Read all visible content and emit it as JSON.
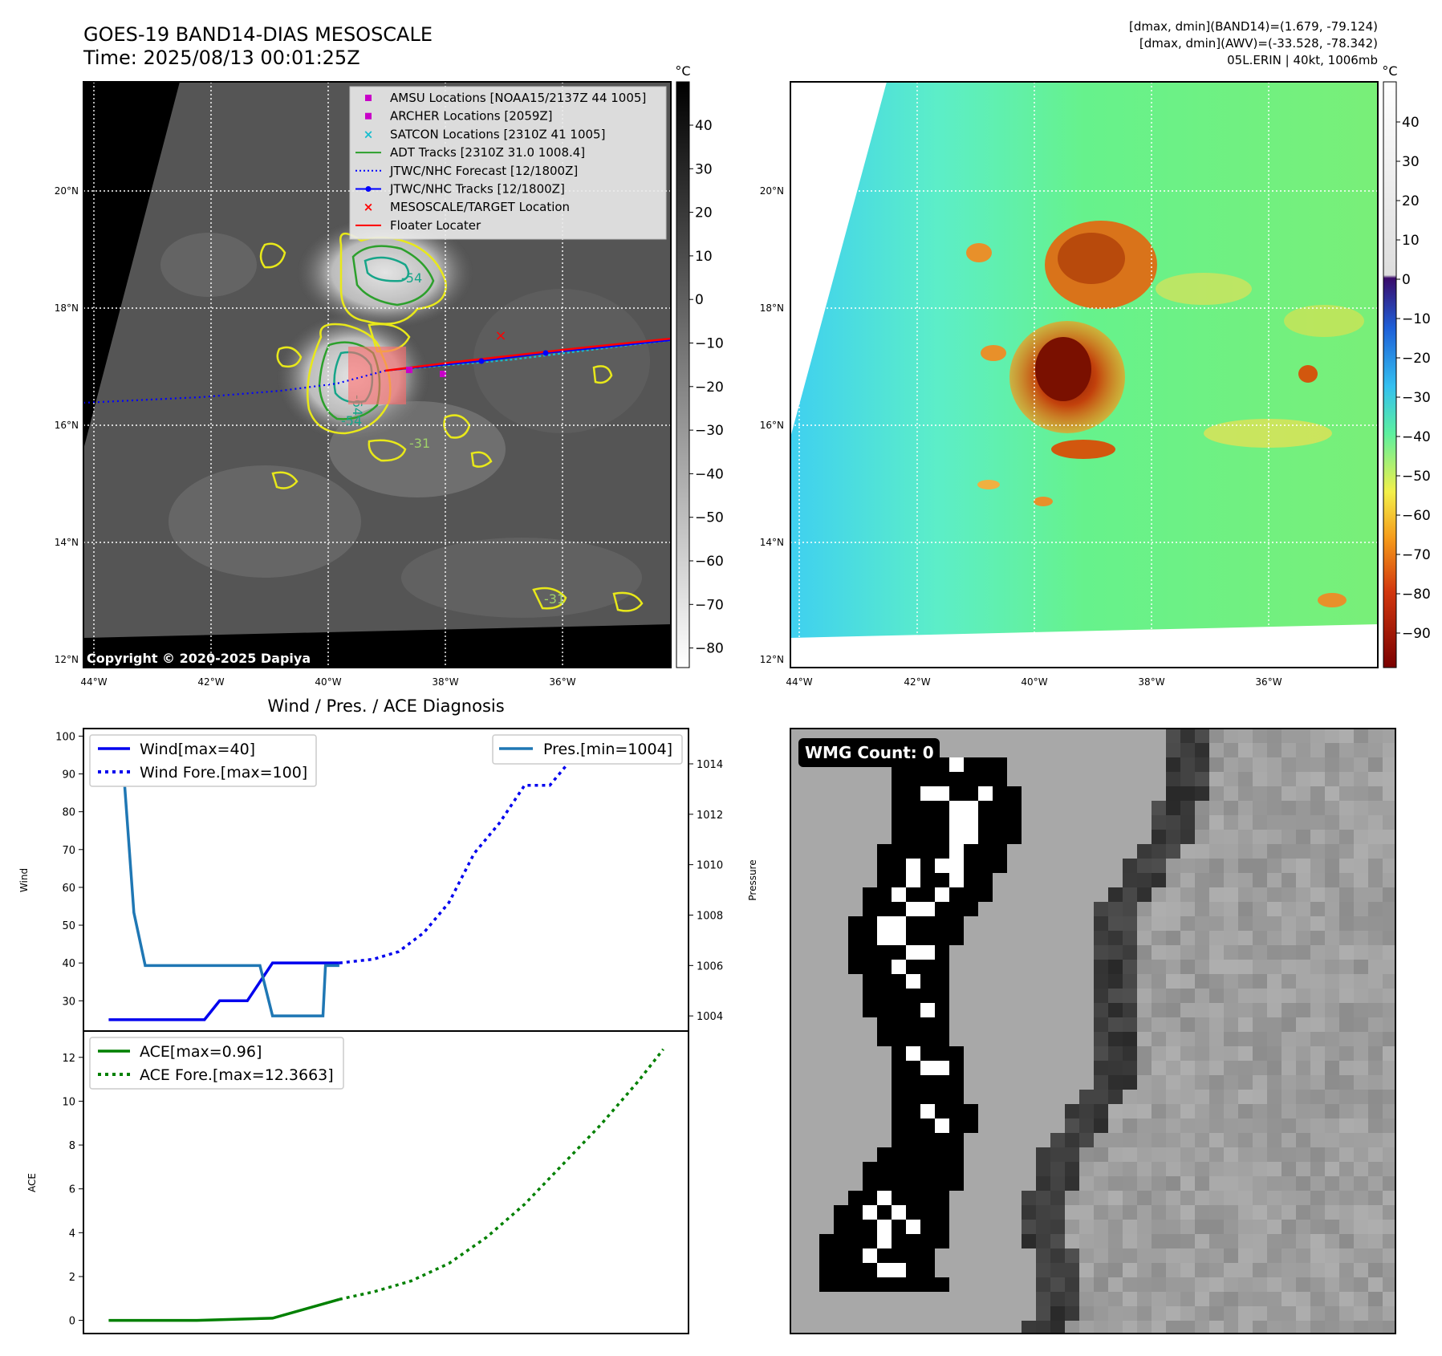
{
  "header": {
    "title_line1": "GOES-19 BAND14-DIAS MESOSCALE",
    "title_line2": "Time: 2025/08/13 00:01:25Z",
    "stats_line1": "[dmax, dmin](BAND14)=(1.679, -79.124)",
    "stats_line2": "[dmax, dmin](AWV)=(-33.528, -78.342)",
    "stats_line3": "05L.ERIN | 40kt, 1006mb"
  },
  "map": {
    "lat_labels": [
      "20°N",
      "18°N",
      "16°N",
      "14°N",
      "12°N"
    ],
    "lon_labels": [
      "44°W",
      "42°W",
      "40°W",
      "38°W",
      "36°W"
    ],
    "copyright": "Copyright © 2020-2025 Dapiya",
    "contour_labels": [
      "-54",
      "-64",
      "-54",
      "-31",
      "-31"
    ],
    "legend": [
      {
        "label": "AMSU Locations [NOAA15/2137Z 44 1005]",
        "color": "#c800c8",
        "marker": "square"
      },
      {
        "label": "ARCHER Locations [2059Z]",
        "color": "#c800c8",
        "marker": "square"
      },
      {
        "label": "SATCON Locations [2310Z 41 1005]",
        "color": "#17becf",
        "marker": "x"
      },
      {
        "label": "ADT Tracks [2310Z 31.0 1008.4]",
        "color": "#2ca02c",
        "marker": "line"
      },
      {
        "label": "JTWC/NHC Forecast [12/1800Z]",
        "color": "#0000ff",
        "marker": "dotted"
      },
      {
        "label": "JTWC/NHC Tracks [12/1800Z]",
        "color": "#0000ff",
        "marker": "line-dot"
      },
      {
        "label": "MESOSCALE/TARGET Location",
        "color": "#ff0000",
        "marker": "x"
      },
      {
        "label": "Floater Locater",
        "color": "#ff0000",
        "marker": "line"
      }
    ]
  },
  "colorbar_left": {
    "unit": "°C",
    "ticks": [
      "40",
      "30",
      "20",
      "10",
      "0",
      "−10",
      "−20",
      "−30",
      "−40",
      "−50",
      "−60",
      "−70",
      "−80"
    ]
  },
  "colorbar_right": {
    "unit": "°C",
    "ticks": [
      "40",
      "30",
      "20",
      "10",
      "0",
      "−10",
      "−20",
      "−30",
      "−40",
      "−50",
      "−60",
      "−70",
      "−80",
      "−90"
    ]
  },
  "wmg": {
    "label": "WMG Count: 0"
  },
  "chart_data": [
    {
      "type": "line",
      "title": "Wind / Pres. / ACE Diagnosis",
      "ylabel": "Wind",
      "ylabel_right": "Pressure",
      "ylim": [
        22,
        102
      ],
      "ylim_right": [
        1003.4,
        1015.4
      ],
      "y_ticks": [
        100,
        90,
        80,
        70,
        60,
        50,
        40,
        30
      ],
      "y_ticks_right": [
        1014,
        1012,
        1010,
        1008,
        1006,
        1004
      ],
      "x": [
        0,
        1,
        2,
        3,
        4,
        5,
        6,
        7,
        8,
        9,
        10,
        11,
        12,
        13,
        14,
        15,
        16,
        17,
        18,
        19,
        20,
        21,
        22,
        23,
        24,
        25,
        26,
        27,
        28,
        29,
        30,
        31,
        32,
        33,
        34,
        35,
        36,
        37,
        38,
        39,
        40,
        41,
        42,
        43,
        44
      ],
      "series": [
        {
          "name": "Wind[max=40]",
          "axis": "left",
          "style": "solid",
          "color": "#0000ee",
          "x": [
            0,
            7.6,
            8.8,
            11,
            13,
            13.6,
            18.3
          ],
          "values": [
            25,
            25,
            30,
            30,
            40,
            40,
            40
          ]
        },
        {
          "name": "Wind Fore.[max=100]",
          "axis": "left",
          "style": "dotted",
          "color": "#0000ee",
          "x": [
            18.3,
            21,
            23,
            25,
            27,
            29,
            31,
            33,
            35,
            37,
            39
          ],
          "values": [
            40,
            41,
            43,
            48,
            56,
            69,
            77,
            87,
            87,
            95,
            100
          ]
        },
        {
          "name": "Pres.[min=1004]",
          "axis": "right",
          "style": "solid",
          "color": "#1f77b4",
          "x": [
            0,
            1,
            2,
            2.9,
            4,
            5,
            6,
            7,
            8,
            9,
            10,
            11,
            12,
            13,
            14,
            15,
            16,
            17,
            17.2,
            18.3
          ],
          "values": [
            1015,
            1015,
            1008.1,
            1006,
            1006,
            1006,
            1006,
            1006,
            1006,
            1006,
            1006,
            1006,
            1006,
            1004,
            1004,
            1004,
            1004,
            1004,
            1006,
            1006
          ]
        }
      ]
    },
    {
      "type": "line",
      "ylabel": "ACE",
      "ylim": [
        -0.6,
        13.2
      ],
      "y_ticks": [
        12,
        10,
        8,
        6,
        4,
        2,
        0
      ],
      "series": [
        {
          "name": "ACE[max=0.96]",
          "style": "solid",
          "color": "#008000",
          "x": [
            0,
            6,
            7,
            13,
            18.3
          ],
          "values": [
            0,
            0,
            0,
            0.1,
            0.96
          ]
        },
        {
          "name": "ACE Fore.[max=12.3663]",
          "style": "dotted",
          "color": "#008000",
          "x": [
            18.3,
            21,
            24,
            27,
            30,
            33,
            36,
            39,
            42,
            44
          ],
          "values": [
            0.96,
            1.3,
            1.8,
            2.6,
            3.8,
            5.3,
            7.1,
            8.9,
            10.9,
            12.37
          ]
        }
      ]
    }
  ]
}
